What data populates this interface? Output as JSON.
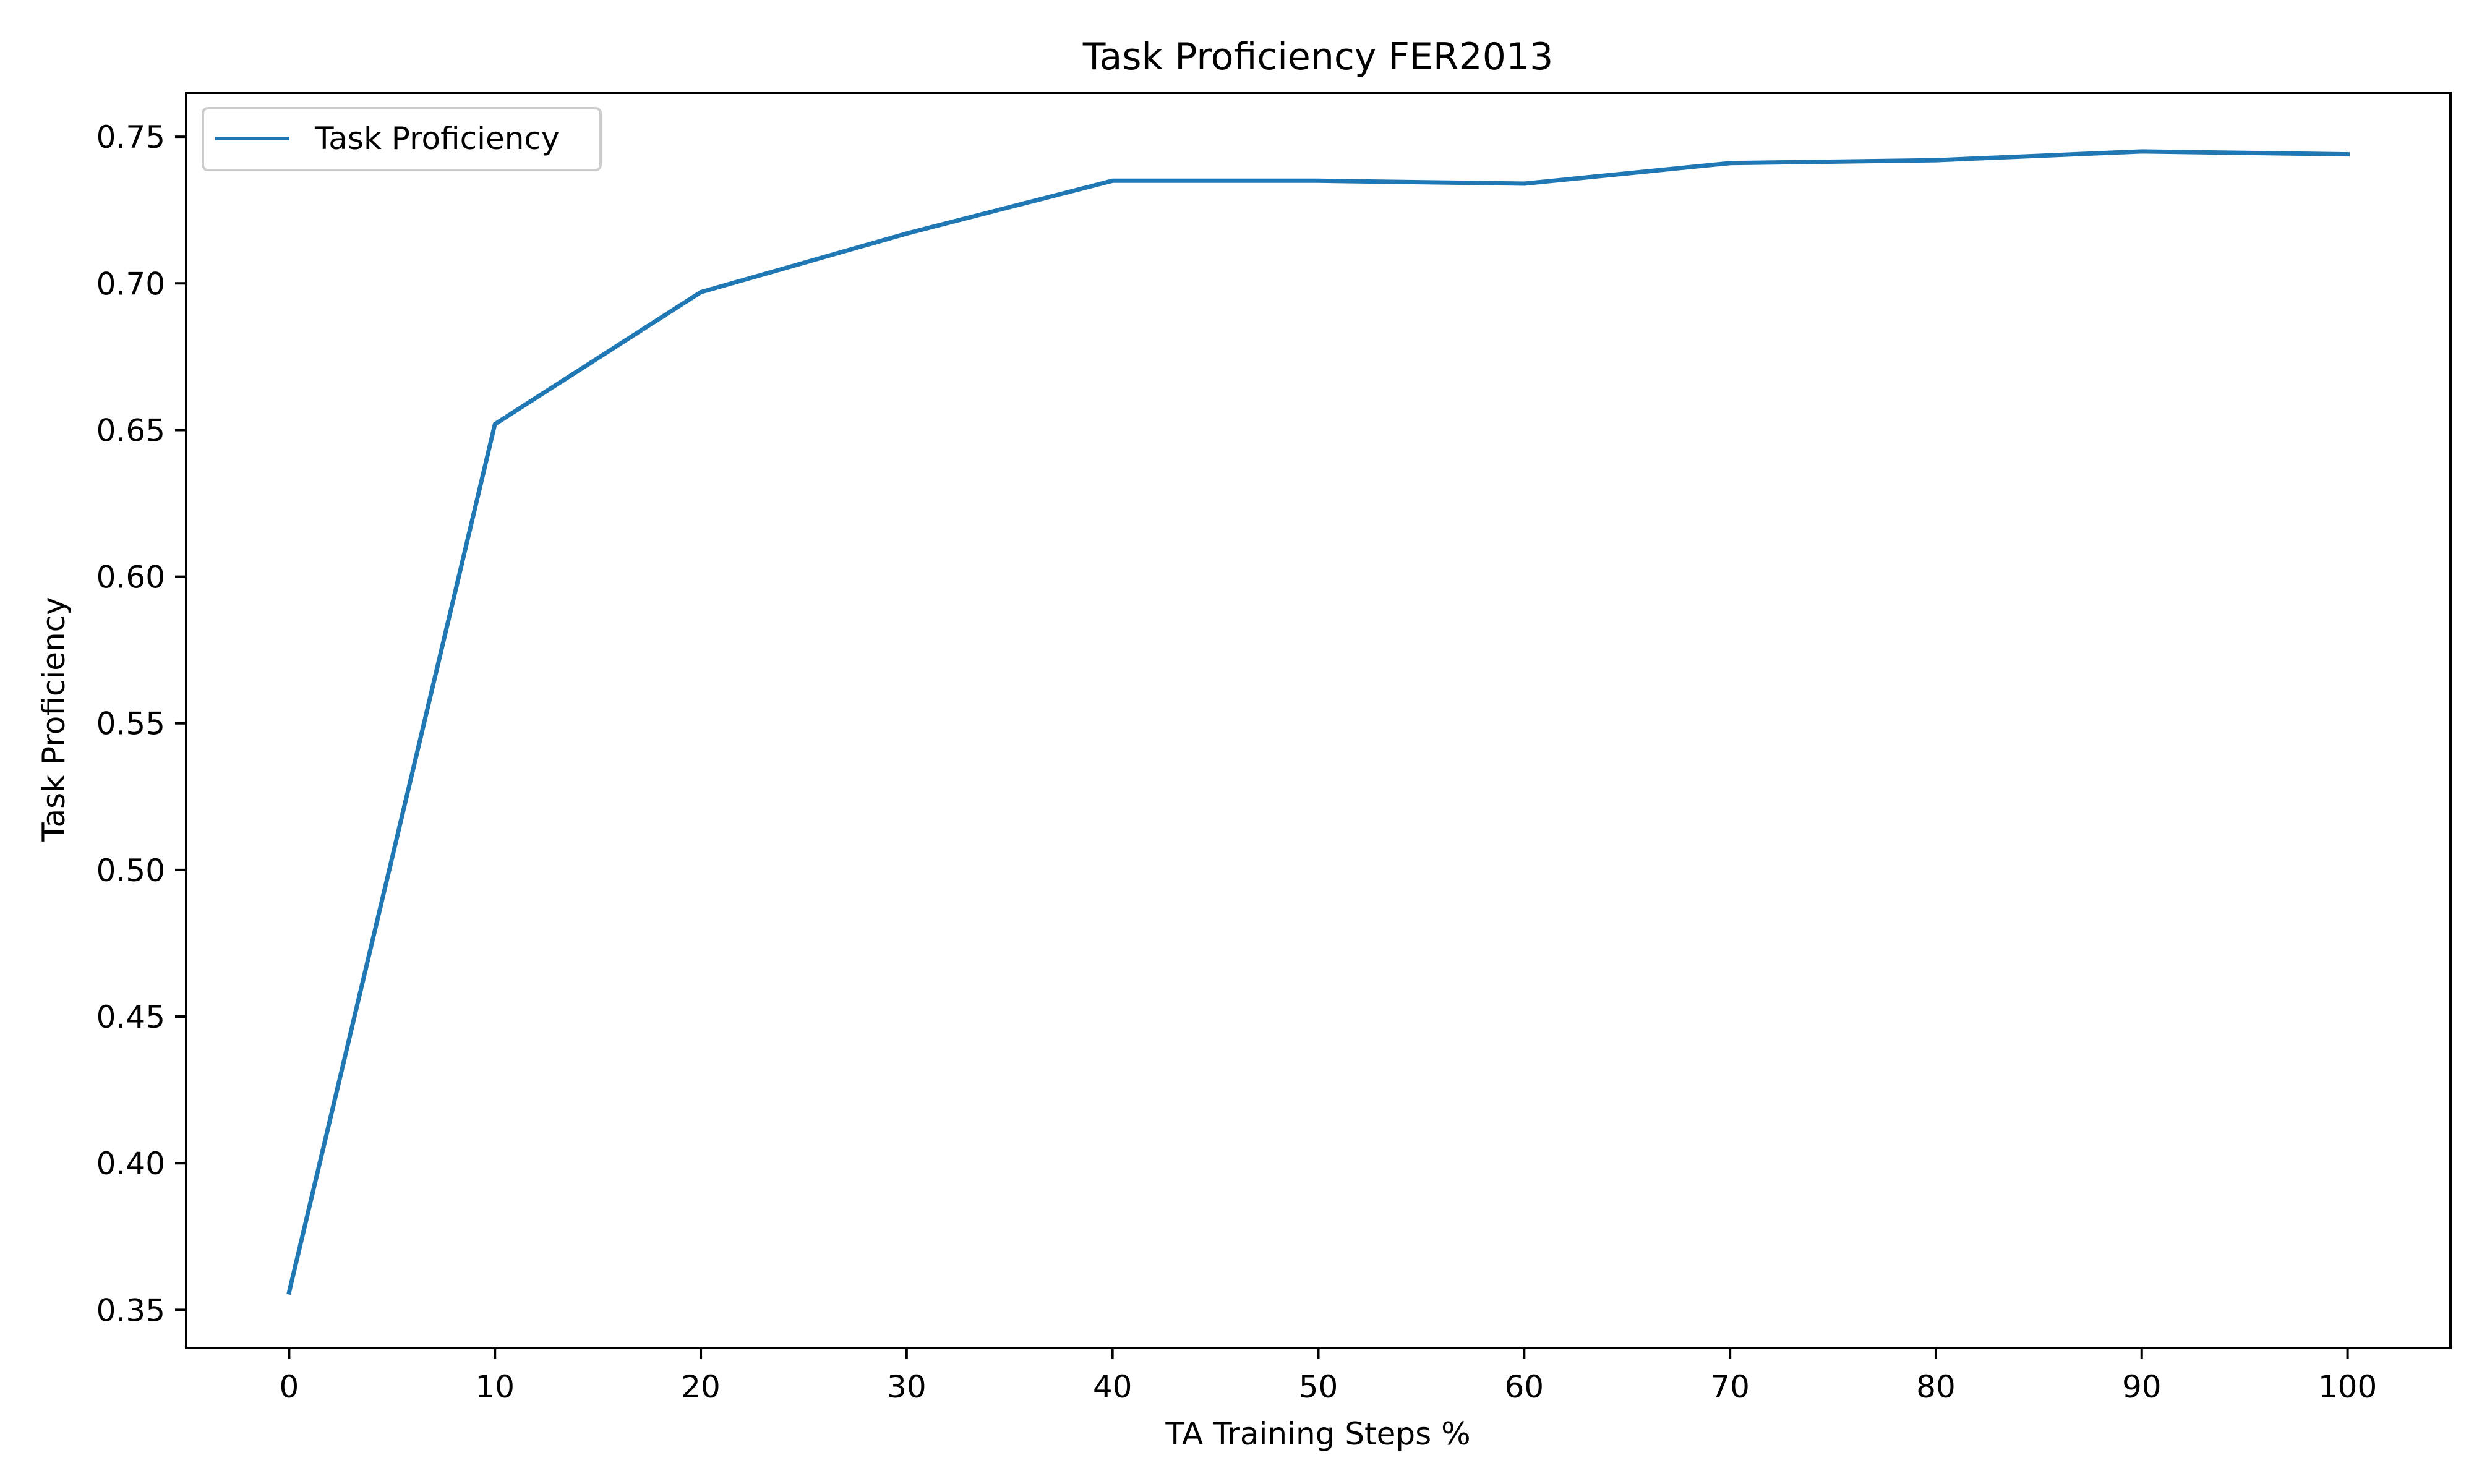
{
  "chart_data": {
    "type": "line",
    "title": "Task Proficiency FER2013",
    "xlabel": "TA Training Steps %",
    "ylabel": "Task Proficiency",
    "x": [
      0,
      10,
      20,
      30,
      40,
      50,
      60,
      70,
      80,
      90,
      100
    ],
    "series": [
      {
        "name": "Task Proficiency",
        "color": "#1f77b4",
        "values": [
          0.356,
          0.652,
          0.697,
          0.717,
          0.735,
          0.735,
          0.734,
          0.741,
          0.742,
          0.745,
          0.744
        ]
      }
    ],
    "xlim": [
      -5,
      105
    ],
    "ylim": [
      0.337,
      0.765
    ],
    "xticks": [
      0,
      10,
      20,
      30,
      40,
      50,
      60,
      70,
      80,
      90,
      100
    ],
    "yticks": [
      0.35,
      0.4,
      0.45,
      0.5,
      0.55,
      0.6,
      0.65,
      0.7,
      0.75
    ],
    "xtick_labels": [
      "0",
      "10",
      "20",
      "30",
      "40",
      "50",
      "60",
      "70",
      "80",
      "90",
      "100"
    ],
    "ytick_labels": [
      "0.35",
      "0.40",
      "0.45",
      "0.50",
      "0.55",
      "0.60",
      "0.65",
      "0.70",
      "0.75"
    ],
    "grid": false,
    "legend_position": "upper-left"
  }
}
